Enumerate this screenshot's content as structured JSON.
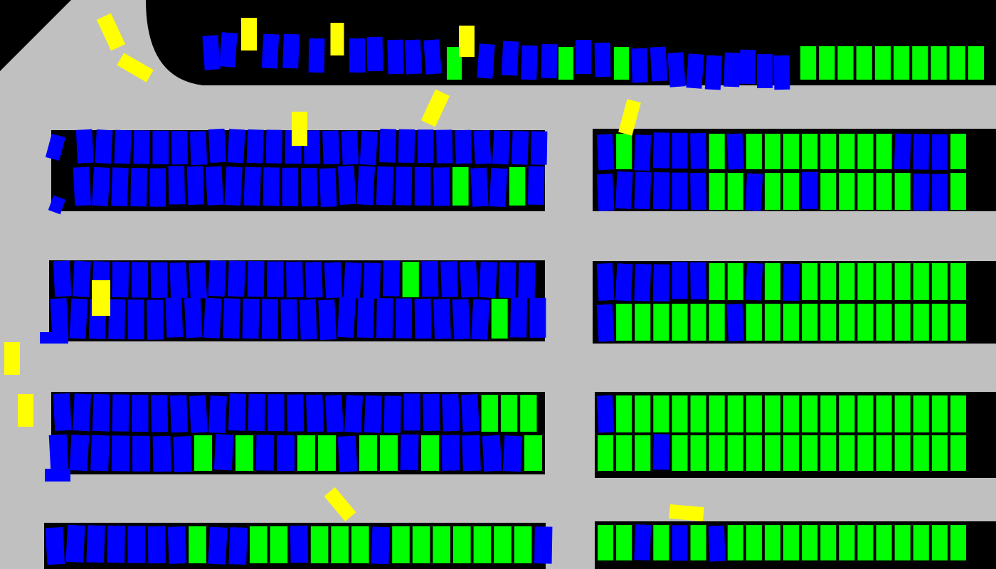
{
  "title": "",
  "colors": {
    "road": "#c0c0c0",
    "lot": "#000000",
    "parked_car": "#0000ff",
    "empty_space": "#00ff00",
    "moving_car": "#ffff00"
  },
  "spot_rows": [
    {
      "name": "top-right",
      "free": [
        1,
        1,
        1,
        1,
        1,
        1,
        1,
        1,
        1,
        1
      ]
    },
    {
      "name": "row-1-top-left",
      "free": [
        0,
        0,
        0,
        0,
        0,
        0,
        0,
        0,
        0,
        0,
        0,
        0,
        0,
        0,
        0,
        0,
        0,
        0,
        0,
        0,
        0,
        0,
        0,
        0,
        0
      ]
    },
    {
      "name": "row-1-bottom-left",
      "free": [
        0,
        0,
        0,
        0,
        0,
        0,
        0,
        0,
        0,
        0,
        0,
        0,
        0,
        0,
        0,
        0,
        0,
        0,
        0,
        0,
        1,
        0,
        0,
        1,
        0
      ]
    },
    {
      "name": "row-1-top-right",
      "free": [
        0,
        1,
        0,
        0,
        0,
        0,
        1,
        0,
        1,
        1,
        1,
        1,
        1,
        1,
        1,
        1,
        0,
        0,
        0,
        1
      ]
    },
    {
      "name": "row-1-bottom-right",
      "free": [
        0,
        0,
        0,
        0,
        0,
        0,
        1,
        1,
        0,
        1,
        1,
        0,
        1,
        1,
        1,
        1,
        1,
        0,
        0,
        1
      ]
    },
    {
      "name": "row-2-top-left",
      "free": [
        0,
        0,
        0,
        0,
        0,
        0,
        0,
        0,
        0,
        0,
        0,
        0,
        0,
        0,
        0,
        0,
        0,
        0,
        1,
        0,
        0,
        0,
        0,
        0,
        0
      ]
    },
    {
      "name": "row-2-bottom-left",
      "free": [
        0,
        0,
        0,
        0,
        0,
        0,
        0,
        0,
        0,
        0,
        0,
        0,
        0,
        0,
        0,
        0,
        0,
        0,
        0,
        0,
        0,
        0,
        0,
        1,
        0,
        0
      ]
    },
    {
      "name": "row-2-top-right",
      "free": [
        0,
        0,
        0,
        0,
        0,
        0,
        1,
        1,
        0,
        1,
        0,
        1,
        1,
        1,
        1,
        1,
        1,
        1,
        1,
        1
      ]
    },
    {
      "name": "row-2-bottom-right",
      "free": [
        0,
        1,
        1,
        1,
        1,
        1,
        1,
        0,
        1,
        1,
        1,
        1,
        1,
        1,
        1,
        1,
        1,
        1,
        1,
        1
      ]
    },
    {
      "name": "row-3-top-left",
      "free": [
        0,
        0,
        0,
        0,
        0,
        0,
        0,
        0,
        0,
        0,
        0,
        0,
        0,
        0,
        0,
        0,
        0,
        0,
        0,
        0,
        0,
        0,
        1,
        1,
        1
      ]
    },
    {
      "name": "row-3-bottom-left",
      "free": [
        0,
        0,
        0,
        0,
        0,
        0,
        0,
        1,
        0,
        1,
        0,
        0,
        1,
        1,
        0,
        1,
        1,
        0,
        1,
        0,
        0,
        0,
        0,
        1
      ]
    },
    {
      "name": "row-3-top-right",
      "free": [
        0,
        1,
        1,
        1,
        1,
        1,
        1,
        1,
        1,
        1,
        1,
        1,
        1,
        1,
        1,
        1,
        1,
        1,
        1,
        1
      ]
    },
    {
      "name": "row-3-bottom-right",
      "free": [
        1,
        1,
        1,
        0,
        1,
        1,
        1,
        1,
        1,
        1,
        1,
        1,
        1,
        1,
        1,
        1,
        1,
        1,
        1,
        1
      ]
    },
    {
      "name": "row-4-left",
      "free": [
        0,
        0,
        0,
        0,
        0,
        0,
        0,
        1,
        0,
        0,
        1,
        1,
        0,
        1,
        1,
        1,
        0,
        1,
        1,
        1,
        1,
        1,
        1,
        1,
        0
      ]
    },
    {
      "name": "row-4-right",
      "free": [
        1,
        1,
        0,
        1,
        0,
        1,
        0,
        1,
        1,
        1,
        1,
        1,
        1,
        1,
        1,
        1,
        1,
        1,
        1,
        1
      ]
    }
  ],
  "moving_cars": 14
}
